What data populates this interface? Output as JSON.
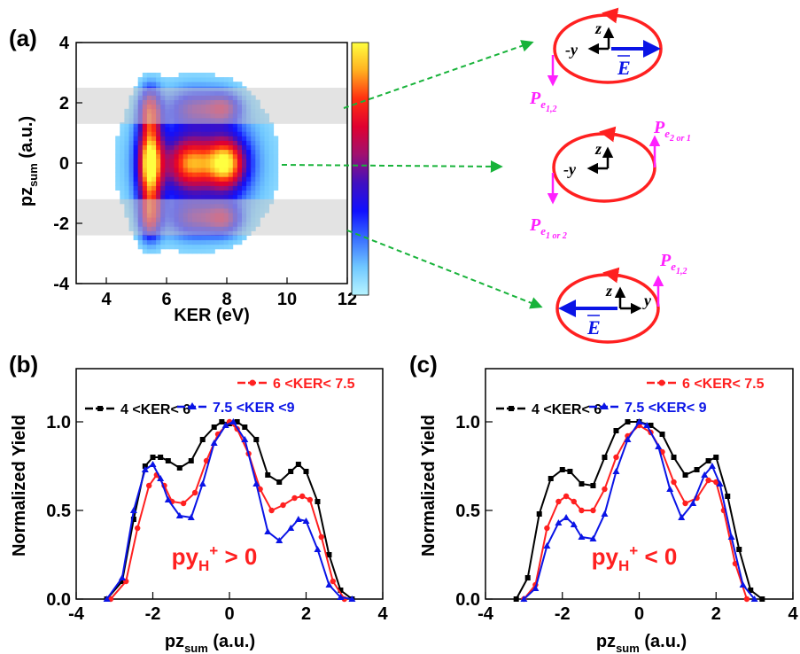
{
  "figure": {
    "panels": [
      {
        "label": "(a)"
      },
      {
        "label": "(b)"
      },
      {
        "label": "(c)"
      }
    ]
  },
  "colors": {
    "red": "#ff2020",
    "blue": "#0a14e6",
    "black": "#000000",
    "magenta": "#ff20ff",
    "green": "#18b33a",
    "band": "#cccccc"
  },
  "chart_data": [
    {
      "panel": "(a)",
      "type": "heatmap",
      "xlabel": "KER (eV)",
      "ylabel_main": "pz",
      "ylabel_sub": "sum",
      "ylabel_unit": " (a.u.)",
      "xlim": [
        3,
        12
      ],
      "ylim": [
        -4,
        4
      ],
      "xticks": [
        4,
        6,
        8,
        10,
        12
      ],
      "yticks": [
        4,
        2,
        0,
        -2,
        -4
      ],
      "bands": [
        [
          1.3,
          2.5
        ],
        [
          -2.4,
          -1.2
        ]
      ],
      "blobs": [
        {
          "x": 5.45,
          "y": 0.0,
          "sx": 0.28,
          "sy": 0.95,
          "a": 1.0
        },
        {
          "x": 5.45,
          "y": 1.8,
          "sx": 0.25,
          "sy": 0.5,
          "a": 0.55
        },
        {
          "x": 5.45,
          "y": -1.8,
          "sx": 0.25,
          "sy": 0.5,
          "a": 0.55
        },
        {
          "x": 6.8,
          "y": 0.0,
          "sx": 0.55,
          "sy": 0.6,
          "a": 0.62
        },
        {
          "x": 8.0,
          "y": 0.0,
          "sx": 0.45,
          "sy": 0.6,
          "a": 0.8
        },
        {
          "x": 6.9,
          "y": 1.85,
          "sx": 0.55,
          "sy": 0.4,
          "a": 0.35
        },
        {
          "x": 6.9,
          "y": -1.85,
          "sx": 0.55,
          "sy": 0.4,
          "a": 0.35
        },
        {
          "x": 7.9,
          "y": 1.85,
          "sx": 0.4,
          "sy": 0.35,
          "a": 0.45
        },
        {
          "x": 7.9,
          "y": -1.85,
          "sx": 0.4,
          "sy": 0.35,
          "a": 0.45
        },
        {
          "x": 7.0,
          "y": 0.0,
          "sx": 1.6,
          "sy": 1.7,
          "a": 0.35
        }
      ],
      "colorbar": [
        "#ffff40",
        "#ffb020",
        "#ff3010",
        "#e00030",
        "#a01070",
        "#4010c0",
        "#1010ff",
        "#3a70ff",
        "#70c8ff",
        "#b8f4ff"
      ]
    },
    {
      "panel": "(b)",
      "type": "line",
      "xlabel_main": "pz",
      "xlabel_sub": "sum",
      "xlabel_unit": " (a.u.)",
      "ylabel": "Normalized Yield",
      "xlim": [
        -4,
        4
      ],
      "ylim": [
        0,
        1.3
      ],
      "xticks": [
        -4,
        -2,
        0,
        2,
        4
      ],
      "yticks": [
        0.0,
        0.5,
        1.0
      ],
      "annotation_main": "py",
      "annotation_sub": "H",
      "annotation_sup": "+",
      "annotation_rest": " > 0",
      "series": [
        {
          "name": "4 <KER< 6",
          "color": "#000000",
          "marker": "square",
          "x": [
            -3.2,
            -2.8,
            -2.5,
            -2.2,
            -2.0,
            -1.8,
            -1.6,
            -1.3,
            -1.0,
            -0.7,
            -0.4,
            -0.2,
            0.0,
            0.2,
            0.4,
            0.7,
            1.0,
            1.3,
            1.6,
            1.8,
            2.0,
            2.3,
            2.6,
            2.9,
            3.2
          ],
          "y": [
            0.0,
            0.1,
            0.45,
            0.75,
            0.8,
            0.8,
            0.78,
            0.74,
            0.78,
            0.9,
            0.97,
            1.0,
            0.99,
            1.0,
            0.97,
            0.9,
            0.7,
            0.66,
            0.72,
            0.76,
            0.72,
            0.55,
            0.25,
            0.05,
            0.0
          ]
        },
        {
          "name": "6 <KER< 7.5",
          "color": "#ff2020",
          "marker": "circle",
          "x": [
            -3.1,
            -2.7,
            -2.4,
            -2.1,
            -1.9,
            -1.7,
            -1.5,
            -1.2,
            -0.9,
            -0.6,
            -0.3,
            0.0,
            0.2,
            0.5,
            0.8,
            1.1,
            1.4,
            1.7,
            1.9,
            2.1,
            2.4,
            2.7,
            3.0
          ],
          "y": [
            0.0,
            0.1,
            0.4,
            0.64,
            0.7,
            0.64,
            0.55,
            0.54,
            0.6,
            0.78,
            0.93,
            1.0,
            0.96,
            0.82,
            0.62,
            0.5,
            0.53,
            0.57,
            0.58,
            0.56,
            0.35,
            0.1,
            0.0
          ]
        },
        {
          "name": "7.5 <KER <9",
          "color": "#0a14e6",
          "marker": "triangle",
          "x": [
            -3.2,
            -2.8,
            -2.5,
            -2.2,
            -2.0,
            -1.8,
            -1.6,
            -1.3,
            -1.0,
            -0.7,
            -0.4,
            -0.1,
            0.1,
            0.4,
            0.7,
            1.0,
            1.3,
            1.6,
            1.8,
            2.0,
            2.3,
            2.6,
            2.9,
            3.2
          ],
          "y": [
            0.0,
            0.12,
            0.5,
            0.73,
            0.76,
            0.68,
            0.56,
            0.47,
            0.46,
            0.65,
            0.88,
            0.98,
            1.0,
            0.9,
            0.65,
            0.38,
            0.33,
            0.4,
            0.45,
            0.44,
            0.28,
            0.08,
            0.01,
            0.0
          ]
        }
      ]
    },
    {
      "panel": "(c)",
      "type": "line",
      "xlabel_main": "pz",
      "xlabel_sub": "sum",
      "xlabel_unit": " (a.u.)",
      "ylabel": "Normalized Yield",
      "xlim": [
        -4,
        4
      ],
      "ylim": [
        0,
        1.3
      ],
      "xticks": [
        -4,
        -2,
        0,
        2,
        4
      ],
      "yticks": [
        0.0,
        0.5,
        1.0
      ],
      "annotation_main": "py",
      "annotation_sub": "H",
      "annotation_sup": "+",
      "annotation_rest": " < 0",
      "series": [
        {
          "name": "4 <KER< 6",
          "color": "#000000",
          "marker": "square",
          "x": [
            -3.2,
            -2.9,
            -2.6,
            -2.3,
            -2.0,
            -1.8,
            -1.5,
            -1.2,
            -0.9,
            -0.6,
            -0.3,
            0.0,
            0.3,
            0.6,
            0.9,
            1.2,
            1.5,
            1.8,
            2.0,
            2.3,
            2.6,
            2.9,
            3.2
          ],
          "y": [
            0.0,
            0.12,
            0.48,
            0.68,
            0.73,
            0.72,
            0.65,
            0.64,
            0.8,
            0.95,
            1.0,
            1.0,
            0.98,
            0.93,
            0.8,
            0.7,
            0.73,
            0.78,
            0.8,
            0.58,
            0.28,
            0.05,
            0.0
          ]
        },
        {
          "name": "6 <KER< 7.5",
          "color": "#ff2020",
          "marker": "circle",
          "x": [
            -3.0,
            -2.7,
            -2.4,
            -2.1,
            -1.9,
            -1.7,
            -1.5,
            -1.2,
            -0.9,
            -0.6,
            -0.3,
            0.0,
            0.3,
            0.6,
            0.9,
            1.2,
            1.5,
            1.8,
            2.0,
            2.2,
            2.5,
            2.8
          ],
          "y": [
            0.0,
            0.08,
            0.4,
            0.55,
            0.58,
            0.55,
            0.5,
            0.5,
            0.62,
            0.8,
            0.92,
            0.98,
            0.94,
            0.83,
            0.66,
            0.54,
            0.57,
            0.67,
            0.66,
            0.5,
            0.2,
            0.0
          ]
        },
        {
          "name": "7.5 <KER< 9",
          "color": "#0a14e6",
          "marker": "triangle",
          "x": [
            -3.0,
            -2.7,
            -2.4,
            -2.1,
            -1.9,
            -1.7,
            -1.5,
            -1.2,
            -0.9,
            -0.6,
            -0.3,
            0.0,
            0.2,
            0.5,
            0.8,
            1.1,
            1.4,
            1.7,
            1.9,
            2.1,
            2.4,
            2.7,
            3.0
          ],
          "y": [
            0.0,
            0.06,
            0.3,
            0.43,
            0.46,
            0.42,
            0.35,
            0.34,
            0.48,
            0.72,
            0.9,
            1.0,
            0.98,
            0.86,
            0.62,
            0.46,
            0.54,
            0.7,
            0.75,
            0.65,
            0.35,
            0.08,
            0.0
          ]
        }
      ]
    }
  ],
  "diagram": {
    "minus_y": "-y",
    "y": "y",
    "z": "z",
    "E": "E",
    "p_letter": "P",
    "e_letter": "e",
    "pe_top_sub": "1,2",
    "pe_mid_top_sub": "2 or 1",
    "pe_mid_bottom_sub": "1 or 2",
    "pe_bottom_sub": "1,2"
  }
}
